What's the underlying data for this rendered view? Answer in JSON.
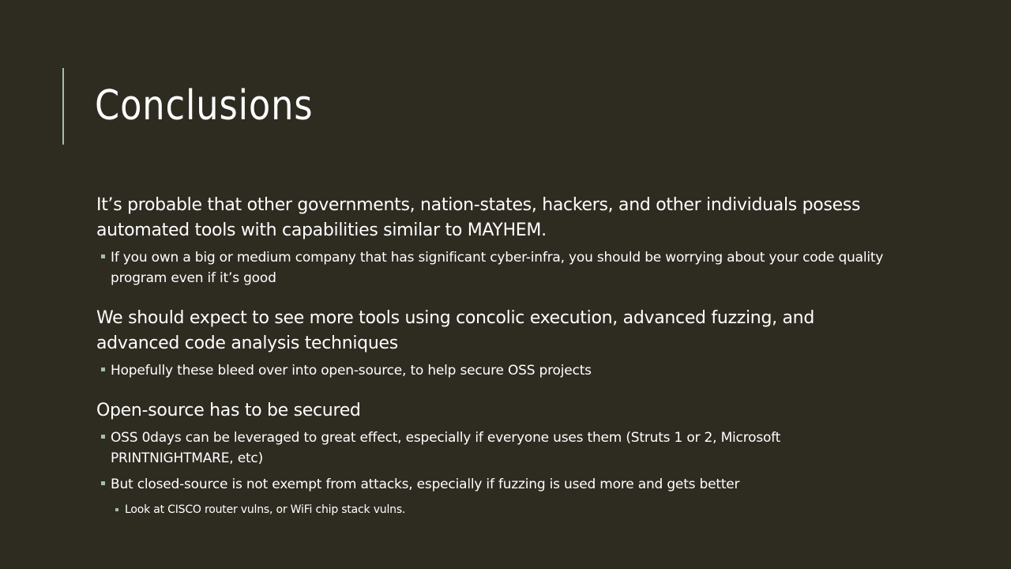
{
  "slide": {
    "title": "Conclusions",
    "points": [
      {
        "text": "It’s probable that other governments, nation-states, hackers, and other individuals posess automated tools with capabilities similar to MAYHEM.",
        "sub": [
          "If you own a big or medium company that has significant cyber-infra, you should be worrying about your code quality program even if it’s good"
        ]
      },
      {
        "text": "We should expect to see more tools using concolic execution, advanced fuzzing, and advanced code analysis techniques",
        "sub": [
          "Hopefully these bleed over into open-source, to help secure OSS projects"
        ]
      },
      {
        "text": "Open-source has to be secured",
        "sub": [
          "OSS 0days can be leveraged to great effect, especially if everyone uses them (Struts 1 or 2, Microsoft PRINTNIGHTMARE, etc)",
          "But closed-source is not exempt from attacks, especially if fuzzing is used more and gets better"
        ],
        "subsub": [
          "Look at CISCO router vulns, or WiFi chip stack vulns."
        ]
      }
    ]
  }
}
